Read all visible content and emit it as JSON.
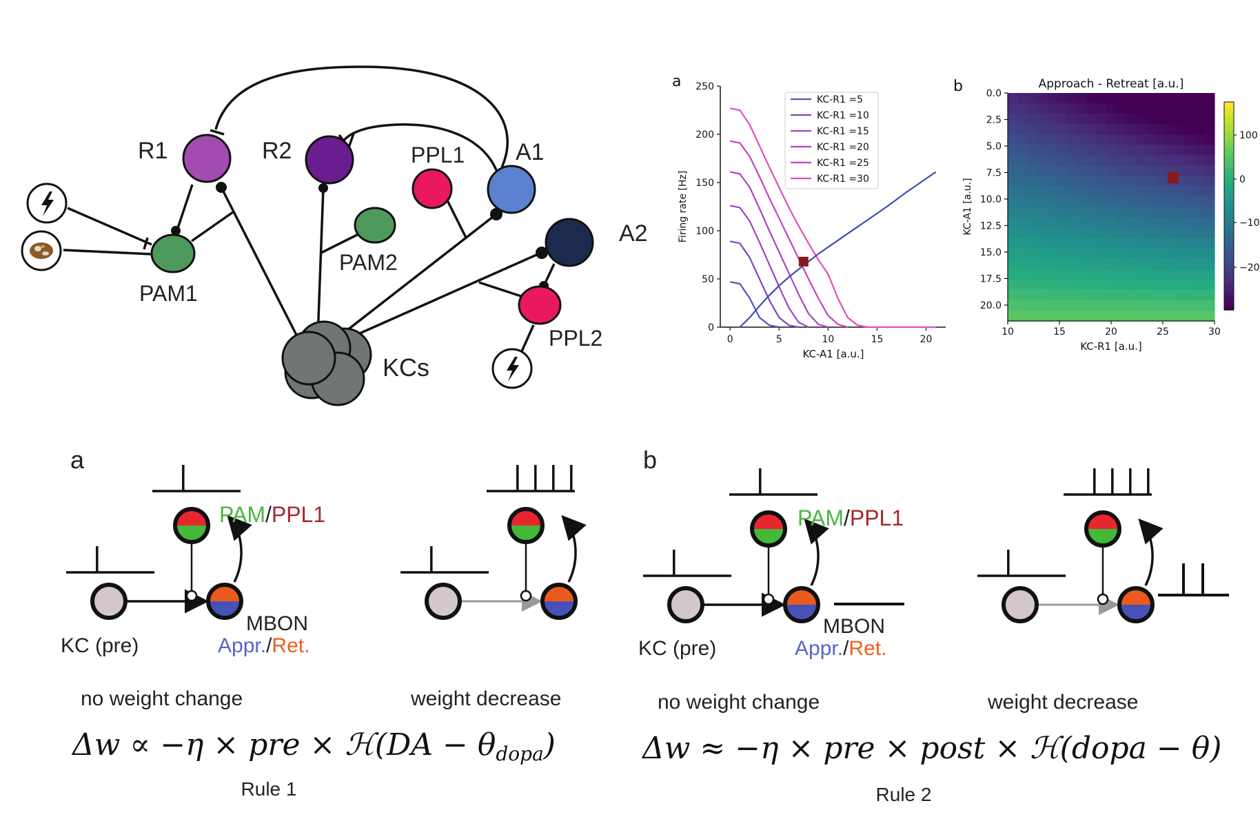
{
  "circuit": {
    "nodes": {
      "R1": "R1",
      "R2": "R2",
      "PPL1": "PPL1",
      "A1": "A1",
      "A2": "A2",
      "PAM1": "PAM1",
      "PAM2": "PAM2",
      "PPL2": "PPL2",
      "KCs": "KCs"
    },
    "colors": {
      "R1": "#a24bb0",
      "R2": "#6a1d8f",
      "PPL1": "#e8195f",
      "A1": "#5b82cf",
      "A2": "#1c2a4f",
      "PAM": "#4d9a5c",
      "PPL2": "#e8195f",
      "KCs": "#6f7675"
    },
    "icons": [
      "shock-icon",
      "odor-icon"
    ]
  },
  "line_chart": {
    "panel_label": "a",
    "ylabel": "Firing rate [Hz]",
    "xlabel": "KC-A1 [a.u.]",
    "yticks": [
      "0",
      "50",
      "100",
      "150",
      "200",
      "250"
    ],
    "xticks": [
      "0",
      "5",
      "10",
      "15",
      "20"
    ],
    "legend": [
      "KC-R1 =5",
      "KC-R1 =10",
      "KC-R1 =15",
      "KC-R1 =20",
      "KC-R1 =25",
      "KC-R1 =30"
    ]
  },
  "heatmap": {
    "panel_label": "b",
    "title": "Approach - Retreat [a.u.]",
    "ylabel": "KC-A1 [a.u.]",
    "xlabel": "KC-R1 [a.u.]",
    "yticks": [
      "0.0",
      "2.5",
      "5.0",
      "7.5",
      "10.0",
      "12.5",
      "15.0",
      "17.5",
      "20.0"
    ],
    "xticks": [
      "10",
      "15",
      "20",
      "25",
      "30"
    ],
    "cbar_ticks": [
      "100",
      "0",
      "−10",
      "−20"
    ]
  },
  "chart_data": [
    {
      "type": "line",
      "xlabel": "KC-A1 [a.u.]",
      "ylabel": "Firing rate [Hz]",
      "ylim": [
        0,
        250
      ],
      "xlim": [
        -1,
        22
      ],
      "series": [
        {
          "name": "KC-R1 =5",
          "x": [
            0,
            1,
            2,
            3,
            4,
            5
          ],
          "y": [
            47,
            45,
            30,
            10,
            2,
            0
          ]
        },
        {
          "name": "KC-R1 =10",
          "x": [
            0,
            1,
            2,
            3,
            4,
            5,
            6,
            7
          ],
          "y": [
            89,
            87,
            72,
            50,
            28,
            10,
            2,
            0
          ]
        },
        {
          "name": "KC-R1 =15",
          "x": [
            0,
            1,
            2,
            3,
            4,
            5,
            6,
            7,
            8
          ],
          "y": [
            126,
            124,
            110,
            88,
            65,
            42,
            20,
            5,
            0
          ]
        },
        {
          "name": "KC-R1 =20",
          "x": [
            0,
            1,
            2,
            3,
            4,
            5,
            6,
            7,
            8,
            9,
            10
          ],
          "y": [
            161,
            159,
            145,
            123,
            100,
            78,
            56,
            34,
            14,
            3,
            0
          ]
        },
        {
          "name": "KC-R1 =25",
          "x": [
            0,
            1,
            2,
            3,
            4,
            5,
            6,
            7,
            8,
            9,
            10,
            11,
            12
          ],
          "y": [
            193,
            191,
            177,
            156,
            134,
            113,
            92,
            71,
            50,
            30,
            12,
            3,
            0
          ]
        },
        {
          "name": "KC-R1 =30",
          "x": [
            0,
            1,
            2,
            3,
            4,
            5,
            6,
            7,
            8,
            9,
            10,
            11,
            12,
            13,
            14,
            15,
            20,
            21
          ],
          "y": [
            227,
            225,
            210,
            188,
            166,
            145,
            124,
            105,
            87,
            70,
            55,
            30,
            10,
            2,
            0,
            0,
            0,
            0
          ]
        },
        {
          "name": "",
          "x": [
            1,
            2,
            3,
            4,
            5,
            6,
            7,
            8,
            9,
            10,
            12,
            14,
            16,
            18,
            20,
            21
          ],
          "y": [
            0,
            10,
            22,
            33,
            43,
            52,
            60,
            68,
            76,
            83,
            97,
            111,
            125,
            140,
            154,
            161
          ]
        }
      ],
      "marker": {
        "x": 7.5,
        "y": 68
      }
    },
    {
      "type": "heatmap",
      "title": "Approach - Retreat [a.u.]",
      "xlabel": "KC-R1 [a.u.]",
      "ylabel": "KC-A1 [a.u.]",
      "xlim": [
        10,
        30
      ],
      "ylim": [
        0,
        21.5
      ],
      "marker": {
        "x": 26,
        "y": 8
      }
    }
  ],
  "rule1": {
    "panel_label": "a",
    "pam": "PAM",
    "slash": "/",
    "ppl1": "PPL1",
    "mbon": "MBON",
    "appr": "Appr.",
    "ret": "Ret.",
    "kc": "KC (pre)",
    "left_caption": "no weight  change",
    "right_caption": "weight decrease",
    "formula_pre": "Δw ∝ −η × pre × ℋ(DA − θ",
    "formula_sub": "dopa",
    "formula_post": ")",
    "name": "Rule 1"
  },
  "rule2": {
    "panel_label": "b",
    "pam": "PAM",
    "slash": "/",
    "ppl1": "PPL1",
    "mbon": "MBON",
    "appr": "Appr.",
    "ret": "Ret.",
    "kc": "KC (pre)",
    "left_caption": "no weight  change",
    "right_caption": "weight decrease",
    "formula": "Δw ≈ −η × pre × post × ℋ(dopa − θ)",
    "name": "Rule 2"
  }
}
